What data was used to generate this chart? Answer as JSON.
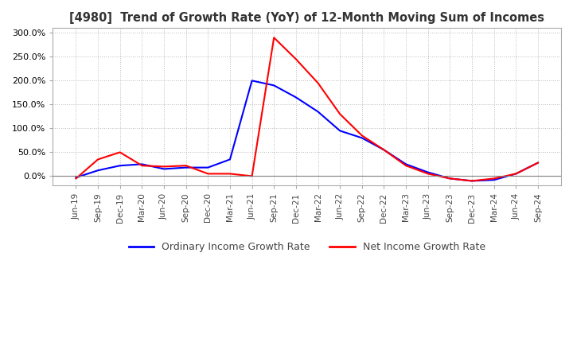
{
  "title": "[4980]  Trend of Growth Rate (YoY) of 12-Month Moving Sum of Incomes",
  "legend": [
    "Ordinary Income Growth Rate",
    "Net Income Growth Rate"
  ],
  "line_colors": [
    "blue",
    "red"
  ],
  "ylim": [
    -20,
    310
  ],
  "yticks": [
    0,
    50,
    100,
    150,
    200,
    250,
    300
  ],
  "background_color": "#ffffff",
  "grid_color": "#bbbbbb",
  "x_labels": [
    "Jun-19",
    "Sep-19",
    "Dec-19",
    "Mar-20",
    "Jun-20",
    "Sep-20",
    "Dec-20",
    "Mar-21",
    "Jun-21",
    "Sep-21",
    "Dec-21",
    "Mar-22",
    "Jun-22",
    "Sep-22",
    "Dec-22",
    "Mar-23",
    "Jun-23",
    "Sep-23",
    "Dec-23",
    "Mar-24",
    "Jun-24",
    "Sep-24"
  ],
  "ordinary_income": [
    -3,
    12,
    22,
    25,
    15,
    18,
    18,
    35,
    200,
    190,
    165,
    135,
    95,
    80,
    55,
    25,
    8,
    -5,
    -10,
    -8,
    5,
    28
  ],
  "net_income": [
    -5,
    35,
    50,
    22,
    20,
    22,
    5,
    5,
    0,
    290,
    245,
    195,
    130,
    85,
    55,
    22,
    5,
    -5,
    -10,
    -5,
    5,
    28
  ]
}
